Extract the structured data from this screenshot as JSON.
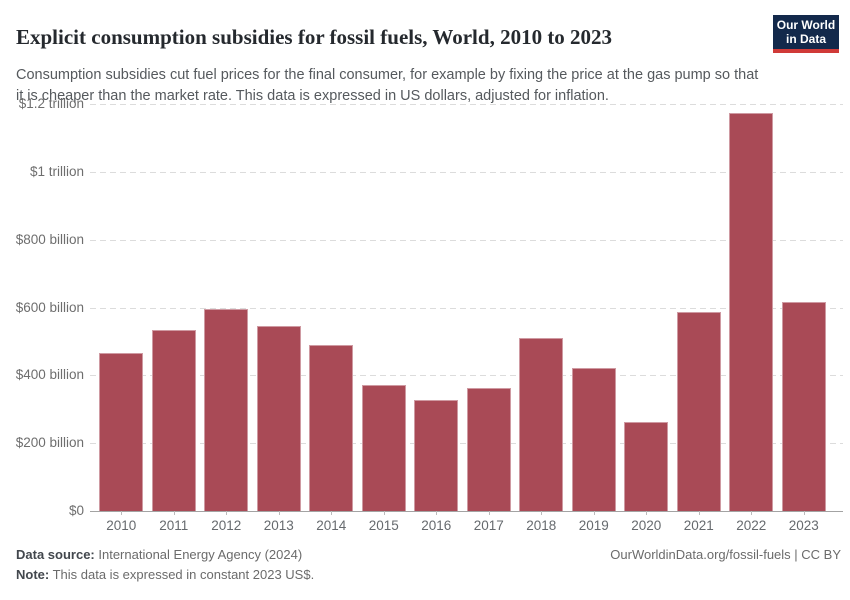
{
  "header": {
    "title": "Explicit consumption subsidies for fossil fuels, World, 2010 to 2023",
    "subtitle": "Consumption subsidies cut fuel prices for the final consumer, for example by fixing the price at the gas pump so that it is cheaper than the market rate. This data is expressed in US dollars, adjusted for inflation.",
    "logo": {
      "line1": "Our World",
      "line2": "in Data"
    }
  },
  "chart_data": {
    "type": "bar",
    "title": "Explicit consumption subsidies for fossil fuels, World, 2010 to 2023",
    "unit": "constant 2023 US$, billions",
    "categories": [
      "2010",
      "2011",
      "2012",
      "2013",
      "2014",
      "2015",
      "2016",
      "2017",
      "2018",
      "2019",
      "2020",
      "2021",
      "2022",
      "2023"
    ],
    "values": [
      465,
      535,
      595,
      545,
      488,
      372,
      327,
      364,
      510,
      422,
      261,
      587,
      1172,
      615
    ],
    "ylim": [
      0,
      1200
    ],
    "yticks": [
      {
        "value": 0,
        "label": "$0"
      },
      {
        "value": 200,
        "label": "$200 billion"
      },
      {
        "value": 400,
        "label": "$400 billion"
      },
      {
        "value": 600,
        "label": "$600 billion"
      },
      {
        "value": 800,
        "label": "$800 billion"
      },
      {
        "value": 1000,
        "label": "$1 trillion"
      },
      {
        "value": 1200,
        "label": "$1.2 trillion"
      }
    ],
    "grid": "horizontal-dashed",
    "legend": "none",
    "bar_color": "#a94a56",
    "bar_border_color": "#cf9aa2"
  },
  "footer": {
    "source_label": "Data source:",
    "source_text": " International Energy Agency (2024)",
    "note_label": "Note:",
    "note_text": " This data is expressed in constant 2023 US$.",
    "link": "OurWorldinData.org/fossil-fuels | CC BY"
  }
}
